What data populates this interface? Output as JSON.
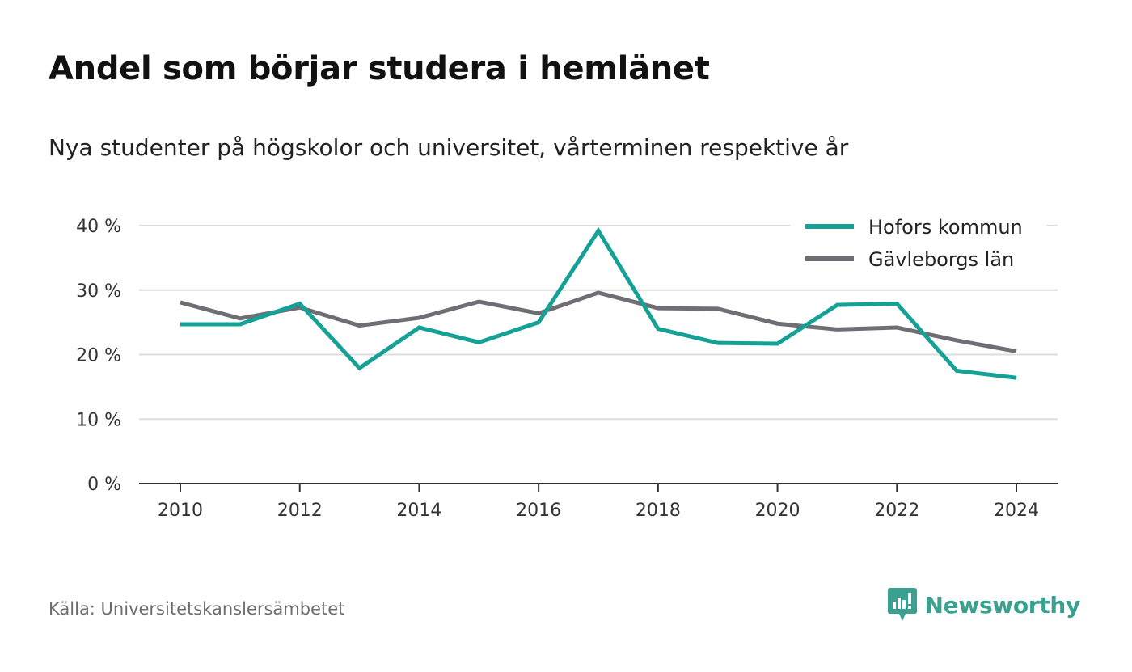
{
  "title": "Andel som börjar studera i hemlänet",
  "subtitle": "Nya studenter på högskolor och universitet, vårterminen respektive år",
  "source": "Källa: Universitetskanslersämbetet",
  "brand": {
    "name": "Newsworthy",
    "color": "#3aa08f",
    "icon": "newsworthy-logo-icon"
  },
  "chart_data": {
    "type": "line",
    "title": "Andel som börjar studera i hemlänet",
    "subtitle": "Nya studenter på högskolor och universitet, vårterminen respektive år",
    "x": [
      2010,
      2011,
      2012,
      2013,
      2014,
      2015,
      2016,
      2017,
      2018,
      2019,
      2020,
      2021,
      2022,
      2023,
      2024
    ],
    "x_ticks": [
      2010,
      2012,
      2014,
      2016,
      2018,
      2020,
      2022,
      2024
    ],
    "x_tick_labels": [
      "2010",
      "2012",
      "2014",
      "2016",
      "2018",
      "2020",
      "2022",
      "2024"
    ],
    "y_ticks": [
      0,
      10,
      20,
      30,
      40
    ],
    "y_tick_labels": [
      "0 %",
      "10 %",
      "20 %",
      "30 %",
      "40 %"
    ],
    "ylim": [
      0,
      40
    ],
    "xlim": [
      2010,
      2024
    ],
    "grid": "horizontal",
    "legend_position": "top-right",
    "series": [
      {
        "name": "Hofors kommun",
        "color": "#16a196",
        "values": [
          24.7,
          24.7,
          27.9,
          17.9,
          24.2,
          21.9,
          25.0,
          39.2,
          24.0,
          21.8,
          21.7,
          27.7,
          27.9,
          17.5,
          16.4
        ]
      },
      {
        "name": "Gävleborgs län",
        "color": "#6f6e75",
        "values": [
          28.1,
          25.6,
          27.3,
          24.5,
          25.7,
          28.2,
          26.4,
          29.6,
          27.2,
          27.1,
          24.8,
          23.9,
          24.2,
          22.2,
          20.5
        ]
      }
    ]
  }
}
